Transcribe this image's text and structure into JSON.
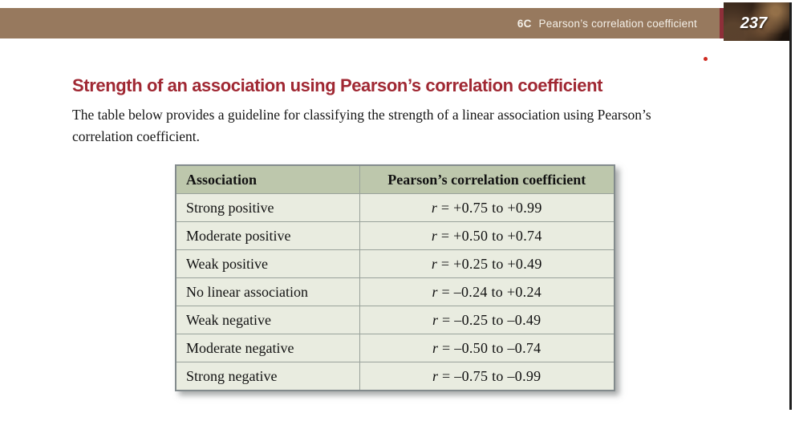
{
  "header_bar": {
    "section_code": "6C",
    "section_title": "Pearson’s correlation coefficient",
    "page_number": "237"
  },
  "content": {
    "heading": "Strength of an association using Pearson’s correlation coefficient",
    "intro": "The table below provides a guideline for classifying the strength of a linear association using Pearson’s correlation coefficient."
  },
  "table": {
    "col_headers": [
      "Association",
      "Pearson’s correlation coefficient"
    ],
    "rows": [
      {
        "association": "Strong positive",
        "r_var": "r",
        "r_range": "= +0.75 to +0.99"
      },
      {
        "association": "Moderate positive",
        "r_var": "r",
        "r_range": "= +0.50 to +0.74"
      },
      {
        "association": "Weak positive",
        "r_var": "r",
        "r_range": "= +0.25 to +0.49"
      },
      {
        "association": "No linear association",
        "r_var": "r",
        "r_range": "= –0.24 to +0.24"
      },
      {
        "association": "Weak negative",
        "r_var": "r",
        "r_range": "= –0.25 to –0.49"
      },
      {
        "association": "Moderate negative",
        "r_var": "r",
        "r_range": "= –0.50 to –0.74"
      },
      {
        "association": "Strong negative",
        "r_var": "r",
        "r_range": "= –0.75 to –0.99"
      }
    ]
  },
  "colors": {
    "header_bar_bg": "#97795e",
    "accent_strip": "#8e2f39",
    "heading_text": "#a02833",
    "table_header_bg": "#bdc7ac",
    "table_row_bg": "#e9ece0",
    "table_border": "#838b8d",
    "page_number_text": "#ffffff",
    "red_dot": "#cf2a20"
  },
  "chart_data": {
    "type": "table",
    "title": "Strength of an association using Pearson’s correlation coefficient",
    "columns": [
      "Association",
      "Pearson’s correlation coefficient"
    ],
    "rows": [
      [
        "Strong positive",
        "r = +0.75 to +0.99"
      ],
      [
        "Moderate positive",
        "r = +0.50 to +0.74"
      ],
      [
        "Weak positive",
        "r = +0.25 to +0.49"
      ],
      [
        "No linear association",
        "r = –0.24 to +0.24"
      ],
      [
        "Weak negative",
        "r = –0.25 to –0.49"
      ],
      [
        "Moderate negative",
        "r = –0.50 to –0.74"
      ],
      [
        "Strong negative",
        "r = –0.75 to –0.99"
      ]
    ]
  }
}
